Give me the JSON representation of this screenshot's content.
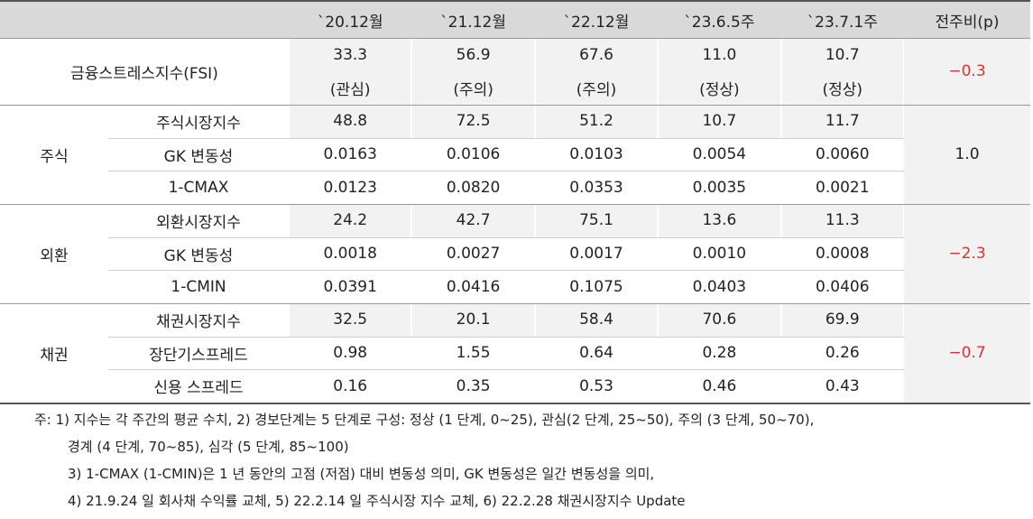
{
  "header": [
    "`20.12월",
    "`21.12월",
    "`22.12월",
    "`23.6.5주",
    "`23.7.1주",
    "전주비(p)"
  ],
  "fsi": {
    "label": "금융스트레스지수(FSI)",
    "values": [
      "33.3",
      "56.9",
      "67.6",
      "11.0",
      "10.7"
    ],
    "statuses": [
      "(관심)",
      "(주의)",
      "(주의)",
      "(정상)",
      "(정상)"
    ],
    "change": "−0.3"
  },
  "groups": [
    {
      "label": "주식",
      "change": "1.0",
      "rows": [
        {
          "label": "주식시장지수",
          "values": [
            "48.8",
            "72.5",
            "51.2",
            "10.7",
            "11.7"
          ]
        },
        {
          "label": "GK 변동성",
          "values": [
            "0.0163",
            "0.0106",
            "0.0103",
            "0.0054",
            "0.0060"
          ]
        },
        {
          "label": "1-CMAX",
          "values": [
            "0.0123",
            "0.0820",
            "0.0353",
            "0.0035",
            "0.0021"
          ]
        }
      ]
    },
    {
      "label": "외환",
      "change": "−2.3",
      "rows": [
        {
          "label": "외환시장지수",
          "values": [
            "24.2",
            "42.7",
            "75.1",
            "13.6",
            "11.3"
          ]
        },
        {
          "label": "GK 변동성",
          "values": [
            "0.0018",
            "0.0027",
            "0.0017",
            "0.0010",
            "0.0008"
          ]
        },
        {
          "label": "1-CMIN",
          "values": [
            "0.0391",
            "0.0416",
            "0.1075",
            "0.0403",
            "0.0406"
          ]
        }
      ]
    },
    {
      "label": "채권",
      "change": "−0.7",
      "rows": [
        {
          "label": "채권시장지수",
          "values": [
            "32.5",
            "20.1",
            "58.4",
            "70.6",
            "69.9"
          ]
        },
        {
          "label": "장단기스프레드",
          "values": [
            "0.98",
            "1.55",
            "0.64",
            "0.28",
            "0.26"
          ]
        },
        {
          "label": "신용 스프레드",
          "values": [
            "0.16",
            "0.35",
            "0.53",
            "0.46",
            "0.43"
          ]
        }
      ]
    }
  ],
  "notes": [
    "주: 1) 지수는 각 주간의 평균 수치, 2) 경보단계는 5 단계로 구성: 정상 (1 단계, 0~25), 관심(2 단계, 25~50), 주의 (3 단계, 50~70),",
    "경계 (4 단계, 70~85), 심각 (5 단계, 85~100)",
    "3) 1-CMAX (1-CMIN)은 1 년 동안의 고점 (저점) 대비 변동성 의미, GK 변동성은 일간 변동성을 의미,",
    "4) 21.9.24 일 회사채 수익률 교체, 5) 22.2.14 일 주식시장 지수 교체, 6) 22.2.28 채권시장지수 Update"
  ]
}
